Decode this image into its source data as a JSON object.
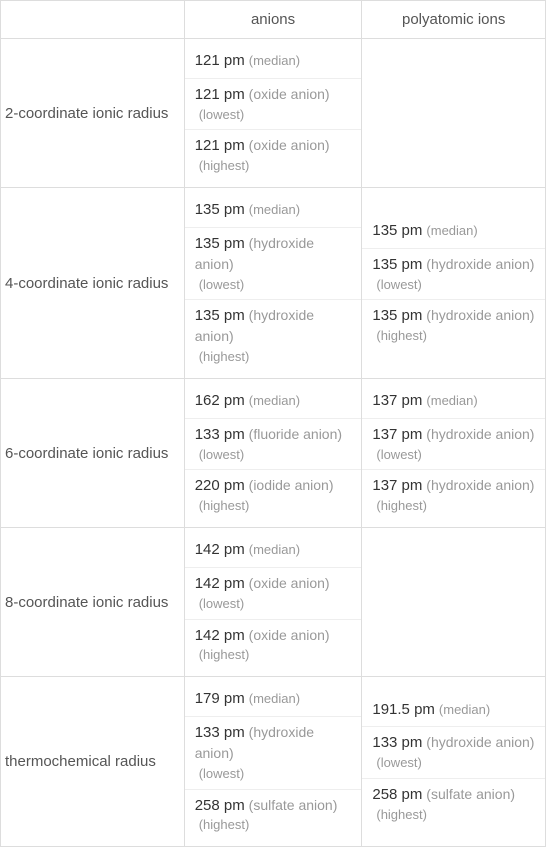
{
  "columns": {
    "corner": "",
    "anions": "anions",
    "polyatomic": "polyatomic ions"
  },
  "rows": [
    {
      "header": "2-coordinate ionic radius",
      "anions": [
        {
          "value": "121 pm",
          "species": "",
          "stat": "(median)",
          "inline": true
        },
        {
          "value": "121 pm",
          "species": " (oxide anion)",
          "stat": "(lowest)",
          "inline": false
        },
        {
          "value": "121 pm",
          "species": " (oxide anion)",
          "stat": "(highest)",
          "inline": false
        }
      ],
      "polyatomic": null
    },
    {
      "header": "4-coordinate ionic radius",
      "anions": [
        {
          "value": "135 pm",
          "species": "",
          "stat": "(median)",
          "inline": true
        },
        {
          "value": "135 pm",
          "species": " (hydroxide anion)",
          "stat": "(lowest)",
          "inline": false
        },
        {
          "value": "135 pm",
          "species": " (hydroxide anion)",
          "stat": "(highest)",
          "inline": false
        }
      ],
      "polyatomic": [
        {
          "value": "135 pm",
          "species": "",
          "stat": "(median)",
          "inline": true
        },
        {
          "value": "135 pm",
          "species": " (hydroxide anion)",
          "stat": "(lowest)",
          "inline": false
        },
        {
          "value": "135 pm",
          "species": " (hydroxide anion)",
          "stat": "(highest)",
          "inline": false
        }
      ]
    },
    {
      "header": "6-coordinate ionic radius",
      "anions": [
        {
          "value": "162 pm",
          "species": "",
          "stat": "(median)",
          "inline": true
        },
        {
          "value": "133 pm",
          "species": " (fluoride anion)",
          "stat": "(lowest)",
          "inline": false
        },
        {
          "value": "220 pm",
          "species": " (iodide anion)",
          "stat": "(highest)",
          "inline": false
        }
      ],
      "polyatomic": [
        {
          "value": "137 pm",
          "species": "",
          "stat": "(median)",
          "inline": true
        },
        {
          "value": "137 pm",
          "species": " (hydroxide anion)",
          "stat": "(lowest)",
          "inline": false
        },
        {
          "value": "137 pm",
          "species": " (hydroxide anion)",
          "stat": "(highest)",
          "inline": false
        }
      ]
    },
    {
      "header": "8-coordinate ionic radius",
      "anions": [
        {
          "value": "142 pm",
          "species": "",
          "stat": "(median)",
          "inline": true
        },
        {
          "value": "142 pm",
          "species": " (oxide anion)",
          "stat": "(lowest)",
          "inline": false
        },
        {
          "value": "142 pm",
          "species": " (oxide anion)",
          "stat": "(highest)",
          "inline": false
        }
      ],
      "polyatomic": null
    },
    {
      "header": "thermochemical radius",
      "anions": [
        {
          "value": "179 pm",
          "species": "",
          "stat": "(median)",
          "inline": true
        },
        {
          "value": "133 pm",
          "species": " (hydroxide anion)",
          "stat": "(lowest)",
          "inline": false
        },
        {
          "value": "258 pm",
          "species": " (sulfate anion)",
          "stat": "(highest)",
          "inline": false
        }
      ],
      "polyatomic": [
        {
          "value": "191.5 pm",
          "species": "",
          "stat": "(median)",
          "inline": true
        },
        {
          "value": "133 pm",
          "species": " (hydroxide anion)",
          "stat": "(lowest)",
          "inline": false
        },
        {
          "value": "258 pm",
          "species": " (sulfate anion)",
          "stat": "(highest)",
          "inline": false
        }
      ]
    }
  ]
}
